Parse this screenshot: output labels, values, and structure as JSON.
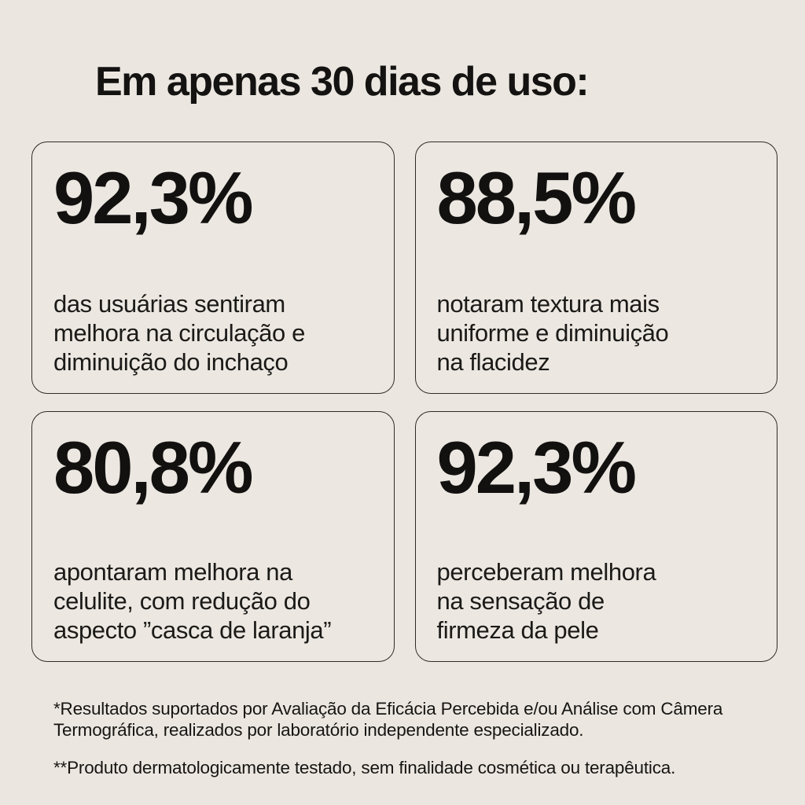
{
  "page": {
    "background_color": "#ebe7e0",
    "text_color": "#161513",
    "card_border_color": "#2e2c29"
  },
  "title": "Em apenas 30 dias de uso:",
  "cards": [
    {
      "value": "92,3%",
      "description": "das usuárias sentiram\nmelhora na circulação e\ndiminuição do inchaço"
    },
    {
      "value": "88,5%",
      "description": "notaram textura mais\nuniforme e diminuição\nna flacidez"
    },
    {
      "value": "80,8%",
      "description": "apontaram melhora na\ncelulite, com redução do\naspecto ”casca de laranja”"
    },
    {
      "value": "92,3%",
      "description": "perceberam melhora\nna sensação de\nfirmeza da pele"
    }
  ],
  "footnotes": [
    "*Resultados suportados por Avaliação da Eficácia Percebida e/ou Análise com Câmera\nTermográfica, realizados por laboratório independente especializado.",
    "**Produto dermatologicamente testado, sem finalidade cosmética ou terapêutica."
  ]
}
